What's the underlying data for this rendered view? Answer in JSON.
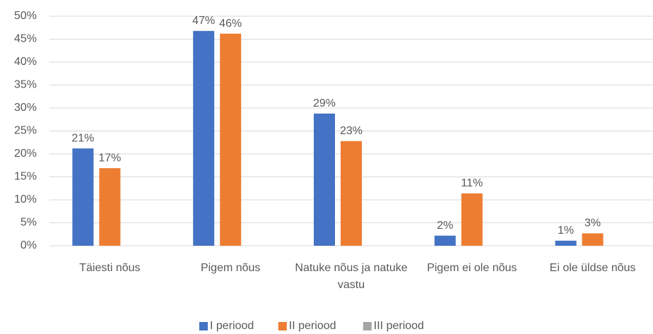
{
  "chart_data": {
    "type": "bar",
    "categories": [
      "Täiesti nõus",
      "Pigem nõus",
      "Natuke nõus ja natuke vastu",
      "Pigem ei ole nõus",
      "Ei ole üldse nõus"
    ],
    "series": [
      {
        "name": "I periood",
        "color": "#4472c4",
        "values": [
          21.2,
          46.8,
          28.8,
          2.2,
          1.1
        ],
        "value_labels": [
          "21%",
          "47%",
          "29%",
          "2%",
          "1%"
        ]
      },
      {
        "name": "II periood",
        "color": "#ed7d31",
        "values": [
          16.9,
          46.2,
          22.8,
          11.4,
          2.7
        ],
        "value_labels": [
          "17%",
          "46%",
          "23%",
          "11%",
          "3%"
        ]
      },
      {
        "name": "III periood",
        "color": "#a5a5a5",
        "values": [
          null,
          null,
          null,
          null,
          null
        ]
      }
    ],
    "ylim": [
      0,
      50
    ],
    "yticks": [
      {
        "value": 0,
        "label": "0%"
      },
      {
        "value": 5,
        "label": "5%"
      },
      {
        "value": 10,
        "label": "10%"
      },
      {
        "value": 15,
        "label": "15%"
      },
      {
        "value": 20,
        "label": "20%"
      },
      {
        "value": 25,
        "label": "25%"
      },
      {
        "value": 30,
        "label": "30%"
      },
      {
        "value": 35,
        "label": "35%"
      },
      {
        "value": 40,
        "label": "40%"
      },
      {
        "value": 45,
        "label": "45%"
      },
      {
        "value": 50,
        "label": "50%"
      }
    ],
    "grid": true,
    "legend": "bottom"
  }
}
